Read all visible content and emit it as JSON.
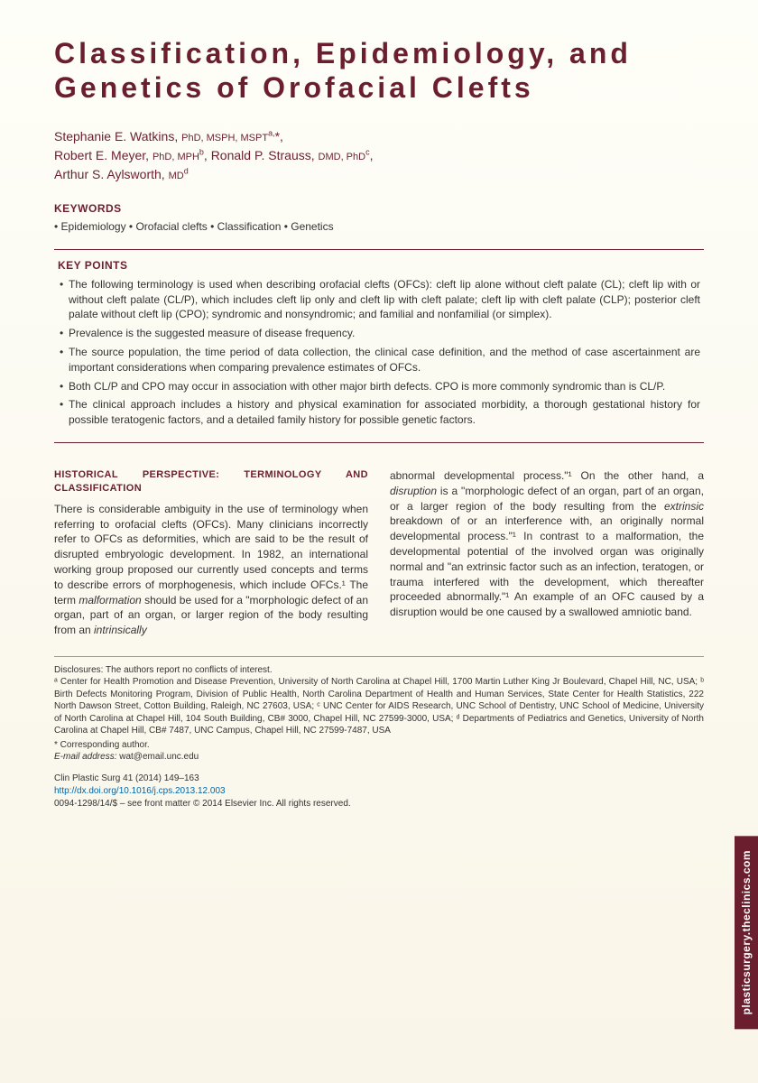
{
  "title": "Classification, Epidemiology, and Genetics of Orofacial Clefts",
  "authors_html": "Stephanie E. Watkins, <span class='author-cred'>PhD, MSPH, MSPT</span><span class='sup'>a,</span>*,<br>Robert E. Meyer, <span class='author-cred'>PhD, MPH</span><span class='sup'>b</span>, Ronald P. Strauss, <span class='author-cred'>DMD, PhD</span><span class='sup'>c</span>,<br>Arthur S. Aylsworth, <span class='author-cred'>MD</span><span class='sup'>d</span>",
  "keywords_header": "KEYWORDS",
  "keywords_line": "• Epidemiology • Orofacial clefts • Classification • Genetics",
  "keypoints_header": "KEY POINTS",
  "keypoints": [
    "The following terminology is used when describing orofacial clefts (OFCs): cleft lip alone without cleft palate (CL); cleft lip with or without cleft palate (CL/P), which includes cleft lip only and cleft lip with cleft palate; cleft lip with cleft palate (CLP); posterior cleft palate without cleft lip (CPO); syndromic and nonsyndromic; and familial and nonfamilial (or simplex).",
    "Prevalence is the suggested measure of disease frequency.",
    "The source population, the time period of data collection, the clinical case definition, and the method of case ascertainment are important considerations when comparing prevalence estimates of OFCs.",
    "Both CL/P and CPO may occur in association with other major birth defects. CPO is more commonly syndromic than is CL/P.",
    "The clinical approach includes a history and physical examination for associated morbidity, a thorough gestational history for possible teratogenic factors, and a detailed family history for possible genetic factors."
  ],
  "body": {
    "heading": "HISTORICAL PERSPECTIVE: TERMINOLOGY AND CLASSIFICATION",
    "col1": "There is considerable ambiguity in the use of terminology when referring to orofacial clefts (OFCs). Many clinicians incorrectly refer to OFCs as deformities, which are said to be the result of disrupted embryologic development. In 1982, an international working group proposed our currently used concepts and terms to describe errors of morphogenesis, which include OFCs.¹ The term <span class='italic'>malformation</span> should be used for a \"morphologic defect of an organ, part of an organ, or larger region of the body resulting from an <span class='italic'>intrinsically</span>",
    "col2": "abnormal developmental process.\"¹ On the other hand, a <span class='italic'>disruption</span> is a \"morphologic defect of an organ, part of an organ, or a larger region of the body resulting from the <span class='italic'>extrinsic</span> breakdown of or an interference with, an originally normal developmental process.\"¹ In contrast to a malformation, the developmental potential of the involved organ was originally normal and \"an extrinsic factor such as an infection, teratogen, or trauma interfered with the development, which thereafter proceeded abnormally.\"¹ An example of an OFC caused by a disruption would be one caused by a swallowed amniotic band."
  },
  "footer": {
    "disclosures": "Disclosures: The authors report no conflicts of interest.",
    "affiliations": "ᵃ Center for Health Promotion and Disease Prevention, University of North Carolina at Chapel Hill, 1700 Martin Luther King Jr Boulevard, Chapel Hill, NC, USA; ᵇ Birth Defects Monitoring Program, Division of Public Health, North Carolina Department of Health and Human Services, State Center for Health Statistics, 222 North Dawson Street, Cotton Building, Raleigh, NC 27603, USA; ᶜ UNC Center for AIDS Research, UNC School of Dentistry, UNC School of Medicine, University of North Carolina at Chapel Hill, 104 South Building, CB# 3000, Chapel Hill, NC 27599-3000, USA; ᵈ Departments of Pediatrics and Genetics, University of North Carolina at Chapel Hill, CB# 7487, UNC Campus, Chapel Hill, NC 27599-7487, USA",
    "corresponding": "* Corresponding author.",
    "email_label": "E-mail address:",
    "email": "wat@email.unc.edu",
    "journal": "Clin Plastic Surg 41 (2014) 149–163",
    "doi": "http://dx.doi.org/10.1016/j.cps.2013.12.003",
    "copyright": "0094-1298/14/$ – see front matter © 2014 Elsevier Inc. All rights reserved."
  },
  "sidetab": "plasticsurgery.theclinics.com",
  "colors": {
    "maroon": "#6b1f2e",
    "text": "#333333",
    "link": "#0066aa",
    "bg_top": "#fefef8",
    "bg_bottom": "#f9f5e8"
  }
}
